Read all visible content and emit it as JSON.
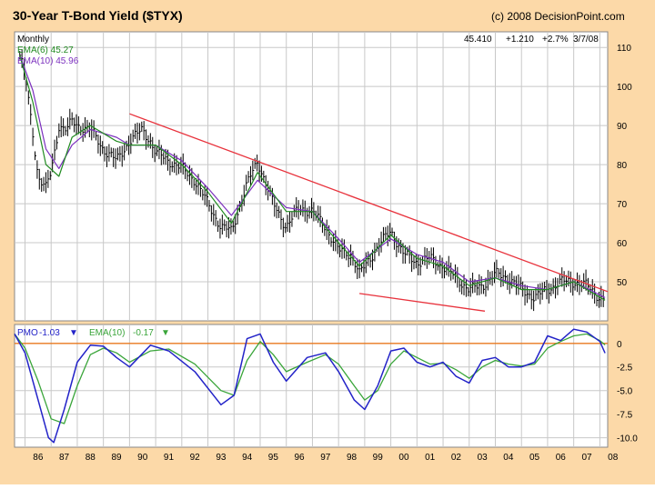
{
  "header": {
    "title": "30-Year T-Bond Yield ($TYX)",
    "copyright": "(c) 2008 DecisionPoint.com",
    "last_quote": "45.410",
    "change": "+1.210",
    "change_pct": "+2.7%",
    "date": "3/7/08"
  },
  "price_panel": {
    "period_label": "Monthly",
    "ema6_label": "EMA(6) 45.27",
    "ema10_label": "EMA(10) 45.96"
  },
  "pmo_panel": {
    "pmo_label": "PMO",
    "pmo_value": "-1.03",
    "ema_label": "EMA(10)",
    "ema_value": "-0.17"
  },
  "colors": {
    "background": "#fcd9a8",
    "plot": "#ffffff",
    "bars": "#000000",
    "ema6": "#228b22",
    "ema10": "#7b2fbe",
    "trendline": "#e8323c",
    "pmo": "#2323c8",
    "pmo_ema": "#3aa53a",
    "zero_line": "#e8781e"
  },
  "chart_data": [
    {
      "type": "line",
      "panel": "price",
      "title": "30-Year T-Bond Yield ($TYX)",
      "x_ticks": [
        "86",
        "87",
        "88",
        "89",
        "90",
        "91",
        "92",
        "93",
        "94",
        "95",
        "96",
        "97",
        "98",
        "99",
        "00",
        "01",
        "02",
        "03",
        "04",
        "05",
        "06",
        "07",
        "08"
      ],
      "y_ticks": [
        50,
        60,
        70,
        80,
        90,
        100,
        110
      ],
      "xlim": [
        1985.6,
        2008.3
      ],
      "ylim": [
        40,
        114
      ],
      "grid": true,
      "series": [
        {
          "name": "$TYX monthly close",
          "x": [
            1985.8,
            1986.0,
            1986.3,
            1986.5,
            1986.8,
            1987.0,
            1987.3,
            1987.6,
            1987.8,
            1988.0,
            1988.5,
            1989.0,
            1989.5,
            1990.0,
            1990.5,
            1990.8,
            1991.0,
            1991.5,
            1992.0,
            1992.5,
            1993.0,
            1993.5,
            1993.9,
            1994.5,
            1994.9,
            1995.5,
            1996.0,
            1996.5,
            1997.0,
            1997.5,
            1998.0,
            1998.5,
            1998.8,
            1999.5,
            2000.0,
            2000.5,
            2001.0,
            2001.5,
            2002.0,
            2002.5,
            2003.0,
            2003.5,
            2004.0,
            2004.5,
            2005.0,
            2005.5,
            2006.0,
            2006.5,
            2007.0,
            2007.5,
            2008.0,
            2008.2
          ],
          "values": [
            108,
            103,
            88,
            77,
            74,
            78,
            90,
            89,
            91,
            90,
            89,
            84,
            81,
            86,
            89,
            86,
            83,
            81,
            79,
            76,
            70,
            64,
            63,
            75,
            81,
            70,
            64,
            69,
            68,
            64,
            58,
            57,
            52,
            59,
            63,
            57,
            55,
            56,
            54,
            51,
            48,
            49,
            52,
            51,
            48,
            46,
            48,
            50,
            50,
            49,
            46,
            45.41
          ]
        },
        {
          "name": "EMA(6)",
          "x": [
            1985.8,
            1986.3,
            1986.8,
            1987.3,
            1987.8,
            1988.5,
            1989.5,
            1990.0,
            1991.0,
            1992.0,
            1993.0,
            1993.9,
            1994.9,
            1996.0,
            1997.0,
            1998.0,
            1998.8,
            2000.0,
            2001.0,
            2002.0,
            2003.0,
            2004.0,
            2005.0,
            2006.0,
            2007.0,
            2008.2
          ],
          "values": [
            108,
            96,
            80,
            77,
            87,
            90,
            86,
            85,
            85,
            80,
            73,
            65,
            78,
            68,
            68,
            60,
            54,
            62,
            56,
            54,
            49,
            51,
            48,
            48,
            50,
            45.27
          ]
        },
        {
          "name": "EMA(10)",
          "x": [
            1985.8,
            1986.3,
            1986.8,
            1987.3,
            1987.8,
            1988.5,
            1989.5,
            1990.0,
            1991.0,
            1992.0,
            1993.0,
            1993.9,
            1994.9,
            1996.0,
            1997.0,
            1998.0,
            1998.8,
            2000.0,
            2001.0,
            2002.0,
            2003.0,
            2004.0,
            2005.0,
            2006.0,
            2007.0,
            2008.2
          ],
          "values": [
            108,
            99,
            84,
            79,
            85,
            89,
            87,
            85,
            85,
            81,
            74,
            67,
            76,
            69,
            68,
            61,
            55,
            61,
            57,
            55,
            50,
            51,
            49,
            48,
            50,
            45.96
          ]
        },
        {
          "name": "Upper trendline",
          "x": [
            1990.0,
            2008.3
          ],
          "values": [
            93,
            47.5
          ]
        },
        {
          "name": "Lower trendline",
          "x": [
            1998.8,
            2003.6
          ],
          "values": [
            47,
            42.5
          ]
        }
      ]
    },
    {
      "type": "line",
      "panel": "pmo",
      "y_ticks": [
        0,
        -2.5,
        -5.0,
        -7.5,
        -10.0
      ],
      "xlim": [
        1985.6,
        2008.3
      ],
      "ylim": [
        -11,
        2
      ],
      "grid": true,
      "series": [
        {
          "name": "PMO",
          "x": [
            1985.6,
            1986.0,
            1986.5,
            1986.9,
            1987.1,
            1987.5,
            1988.0,
            1988.5,
            1989.0,
            1989.5,
            1990.0,
            1990.8,
            1991.5,
            1992.5,
            1993.5,
            1994.0,
            1994.5,
            1995.0,
            1995.5,
            1996.0,
            1996.8,
            1997.5,
            1998.0,
            1998.6,
            1999.0,
            1999.5,
            2000.0,
            2000.5,
            2001.0,
            2001.5,
            2002.0,
            2002.5,
            2003.0,
            2003.5,
            2004.0,
            2004.5,
            2005.0,
            2005.5,
            2006.0,
            2006.5,
            2007.0,
            2007.5,
            2008.0,
            2008.2
          ],
          "values": [
            1.0,
            -1.0,
            -6.0,
            -10.0,
            -10.5,
            -7.0,
            -2.0,
            -0.2,
            -0.3,
            -1.5,
            -2.5,
            -0.2,
            -0.8,
            -3.0,
            -6.5,
            -5.5,
            0.5,
            1.0,
            -2.0,
            -4.0,
            -1.5,
            -1.0,
            -3.0,
            -6.0,
            -7.0,
            -4.5,
            -0.8,
            -0.5,
            -2.0,
            -2.5,
            -2.0,
            -3.5,
            -4.2,
            -1.8,
            -1.5,
            -2.5,
            -2.5,
            -2.0,
            0.8,
            0.3,
            1.5,
            1.2,
            0.2,
            -1.03
          ]
        },
        {
          "name": "EMA(10)",
          "x": [
            1985.6,
            1986.0,
            1986.5,
            1987.0,
            1987.5,
            1988.0,
            1988.5,
            1989.0,
            1989.5,
            1990.0,
            1990.8,
            1991.5,
            1992.5,
            1993.5,
            1994.0,
            1994.5,
            1995.0,
            1995.5,
            1996.0,
            1996.8,
            1997.5,
            1998.0,
            1998.6,
            1999.0,
            1999.5,
            2000.0,
            2000.5,
            2001.0,
            2001.5,
            2002.0,
            2002.5,
            2003.0,
            2003.5,
            2004.0,
            2004.5,
            2005.0,
            2005.5,
            2006.0,
            2006.5,
            2007.0,
            2007.5,
            2008.0,
            2008.2
          ],
          "values": [
            1.0,
            -0.5,
            -4.0,
            -8.0,
            -8.5,
            -4.5,
            -1.2,
            -0.5,
            -1.0,
            -2.0,
            -0.8,
            -0.6,
            -2.2,
            -5.0,
            -5.5,
            -1.8,
            0.2,
            -1.2,
            -3.0,
            -2.0,
            -1.2,
            -2.2,
            -4.5,
            -6.0,
            -5.0,
            -2.2,
            -0.8,
            -1.5,
            -2.2,
            -2.1,
            -2.8,
            -3.7,
            -2.5,
            -1.8,
            -2.2,
            -2.4,
            -2.2,
            -0.5,
            0.2,
            0.8,
            1.0,
            0.3,
            -0.17
          ]
        }
      ]
    }
  ]
}
